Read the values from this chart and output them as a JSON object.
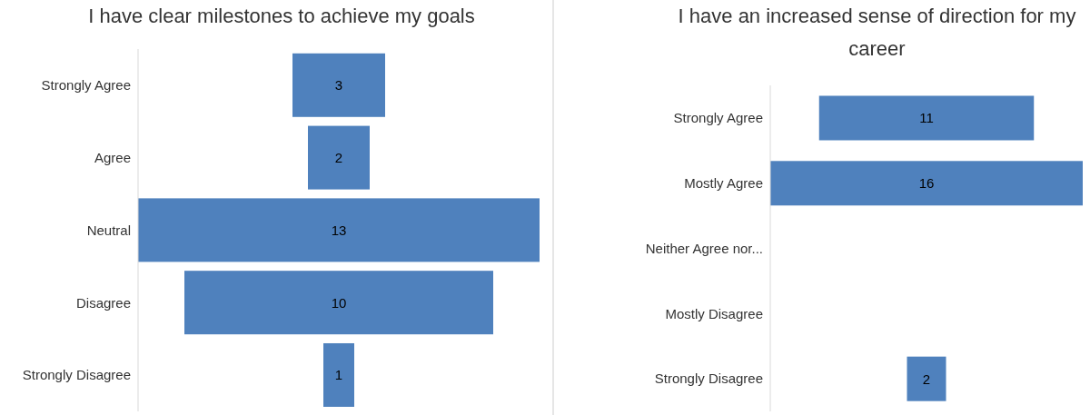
{
  "chart_data": [
    {
      "type": "other",
      "title": "I have clear milestones to achieve my goals",
      "categories": [
        "Strongly Agree",
        "Agree",
        "Neutral",
        "Disagree",
        "Strongly Disagree"
      ],
      "values": [
        3,
        2,
        13,
        10,
        1
      ],
      "color": "#4f81bd",
      "data_labels": true
    },
    {
      "type": "other",
      "title": "I have an increased sense of direction for my career",
      "categories": [
        "Strongly Agree",
        "Mostly Agree",
        "Neither Agree nor...",
        "Mostly Disagree",
        "Strongly Disagree"
      ],
      "values": [
        11,
        16,
        null,
        null,
        2
      ],
      "color": "#4f81bd",
      "data_labels": true
    }
  ]
}
